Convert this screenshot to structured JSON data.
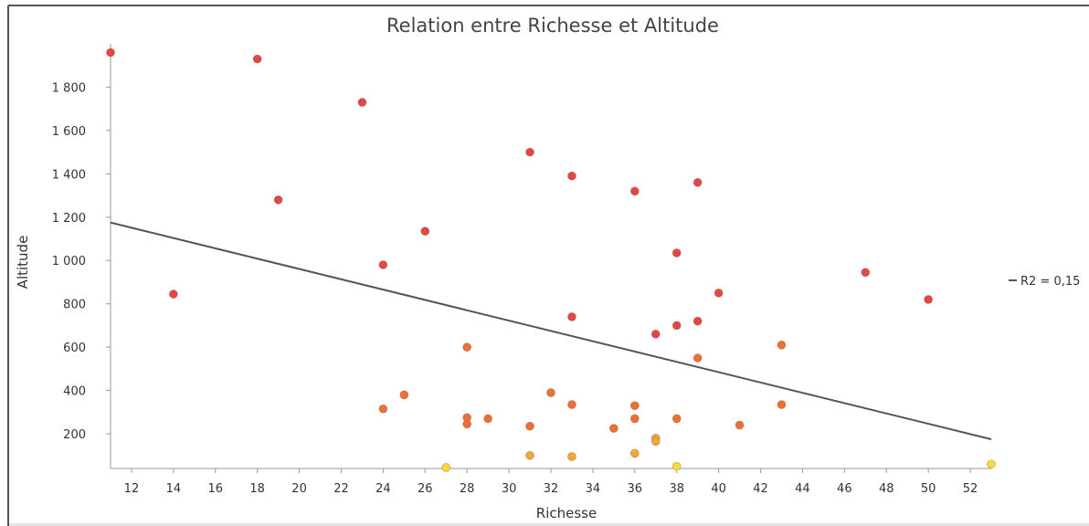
{
  "chart_data": {
    "type": "scatter",
    "title": "Relation entre Richesse et Altitude",
    "xlabel": "Richesse",
    "ylabel": "Altitude",
    "xlim": [
      11,
      53
    ],
    "ylim": [
      40,
      2000
    ],
    "x_ticks": [
      12,
      14,
      16,
      18,
      20,
      22,
      24,
      26,
      28,
      30,
      32,
      34,
      36,
      38,
      40,
      42,
      44,
      46,
      48,
      50,
      52
    ],
    "y_ticks": [
      200,
      400,
      600,
      800,
      1000,
      1200,
      1400,
      1600,
      1800
    ],
    "y_tick_labels": [
      "200",
      "400",
      "600",
      "800",
      "1 000",
      "1 200",
      "1 400",
      "1 600",
      "1 800"
    ],
    "grid": false,
    "point_color_scale": [
      "#f5dc3a",
      "#f0a63c",
      "#e8703a",
      "#e04848"
    ],
    "series": [
      {
        "points": [
          [
            11,
            1960
          ],
          [
            18,
            1930
          ],
          [
            23,
            1730
          ],
          [
            31,
            1500
          ],
          [
            33,
            1390
          ],
          [
            36,
            1320
          ],
          [
            39,
            1360
          ],
          [
            19,
            1280
          ],
          [
            26,
            1135
          ],
          [
            24,
            980
          ],
          [
            38,
            1035
          ],
          [
            14,
            845
          ],
          [
            47,
            945
          ],
          [
            50,
            820
          ],
          [
            40,
            850
          ],
          [
            33,
            740
          ],
          [
            39,
            720
          ],
          [
            38,
            700
          ],
          [
            37,
            660
          ],
          [
            28,
            600
          ],
          [
            43,
            610
          ],
          [
            39,
            550
          ],
          [
            32,
            390
          ],
          [
            25,
            380
          ],
          [
            33,
            335
          ],
          [
            36,
            330
          ],
          [
            43,
            335
          ],
          [
            24,
            315
          ],
          [
            28,
            275
          ],
          [
            29,
            270
          ],
          [
            36,
            270
          ],
          [
            38,
            270
          ],
          [
            28,
            245
          ],
          [
            31,
            235
          ],
          [
            35,
            225
          ],
          [
            41,
            240
          ],
          [
            37,
            180
          ],
          [
            37,
            165
          ],
          [
            36,
            110
          ],
          [
            31,
            100
          ],
          [
            33,
            95
          ],
          [
            27,
            45
          ],
          [
            38,
            50
          ],
          [
            53,
            60
          ]
        ]
      }
    ],
    "trendline": {
      "x": [
        11,
        53
      ],
      "y": [
        1175,
        175
      ],
      "color": "#555555"
    },
    "legend": {
      "label": "R2 = 0,15",
      "position": "right"
    }
  }
}
